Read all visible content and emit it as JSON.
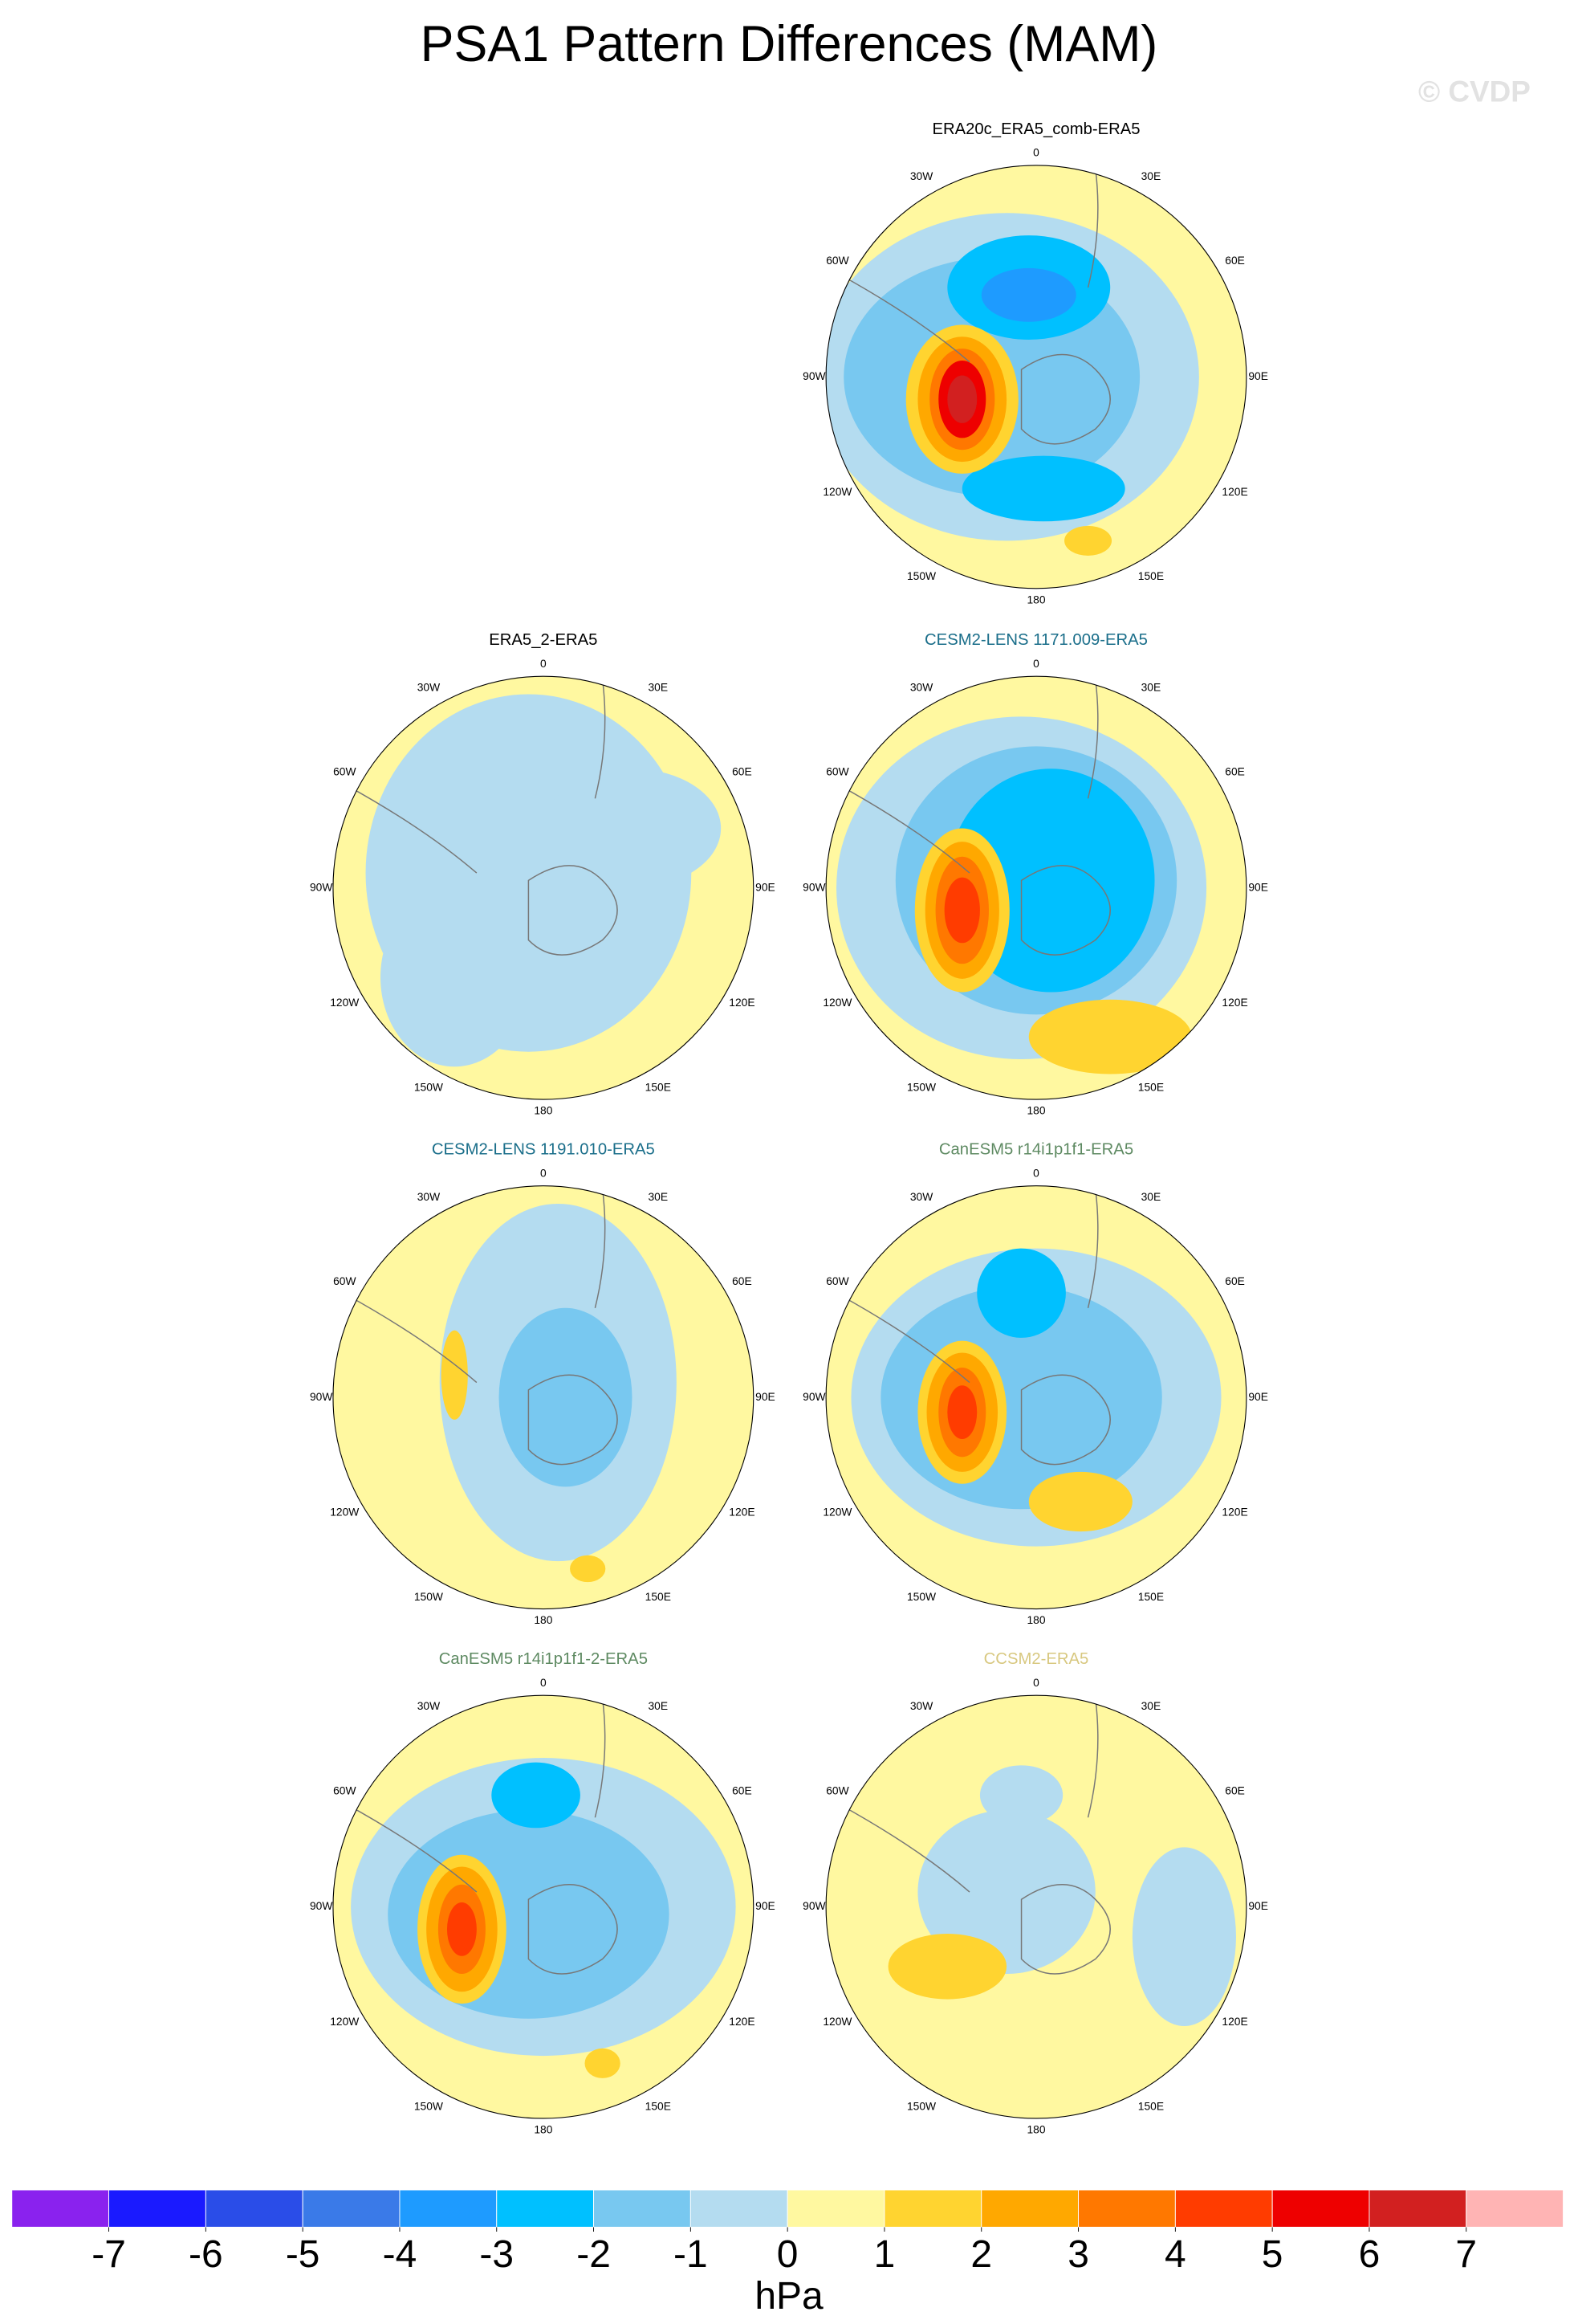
{
  "title": "PSA1 Pattern Differences (MAM)",
  "watermark": "© CVDP",
  "lon_labels": [
    "0",
    "30E",
    "60E",
    "90E",
    "120E",
    "150E",
    "180",
    "150W",
    "120W",
    "90W",
    "60W",
    "30W"
  ],
  "panels": [
    {
      "title": "ERA20c_ERA5_comb-ERA5",
      "title_color": "#000000"
    },
    {
      "title": "ERA5_2-ERA5",
      "title_color": "#000000"
    },
    {
      "title": "CESM2-LENS 1171.009-ERA5",
      "title_color": "#1a6e8a"
    },
    {
      "title": "CESM2-LENS 1191.010-ERA5",
      "title_color": "#1a6e8a"
    },
    {
      "title": "CanESM5 r14i1p1f1-ERA5",
      "title_color": "#5e8a62"
    },
    {
      "title": "CanESM5 r14i1p1f1-2-ERA5",
      "title_color": "#5e8a62"
    },
    {
      "title": "CCSM2-ERA5",
      "title_color": "#d8c880"
    }
  ],
  "colorbar": {
    "ticks": [
      -7,
      -6,
      -5,
      -4,
      -3,
      -2,
      -1,
      0,
      1,
      2,
      3,
      4,
      5,
      6,
      7
    ],
    "colors": [
      "#8a22ee",
      "#1a1aff",
      "#2a4de8",
      "#3a7ae8",
      "#1e9bff",
      "#00c0ff",
      "#78c8f0",
      "#b4dcf0",
      "#fff8a0",
      "#ffd430",
      "#ffa800",
      "#ff7800",
      "#ff3c00",
      "#ee0000",
      "#d22020",
      "#ffb4b4"
    ],
    "label": "hPa"
  }
}
